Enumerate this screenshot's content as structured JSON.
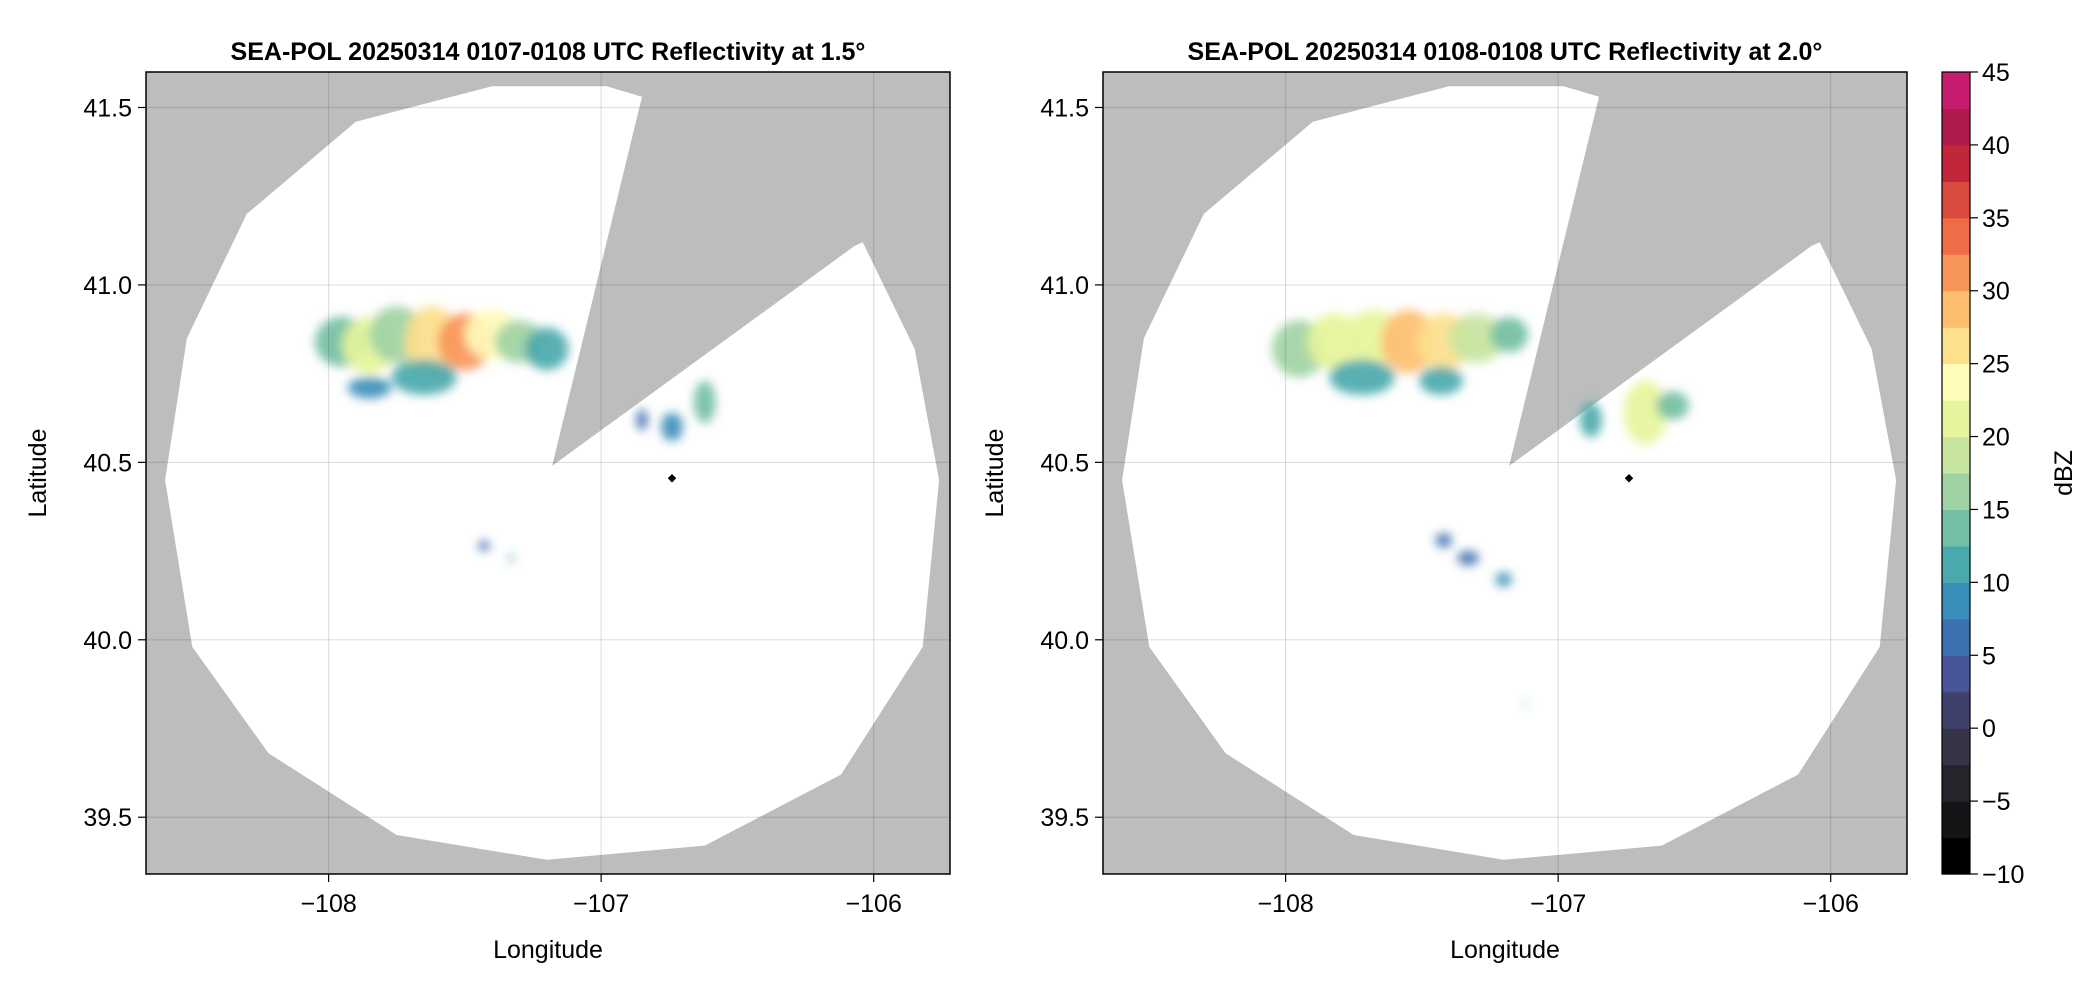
{
  "chart_data": {
    "type": "heatmap",
    "panels": [
      {
        "title": "SEA-POL 20250314 0107-0108 UTC Reflectivity at 1.5°",
        "xlabel": "Longitude",
        "ylabel": "Latitude",
        "xlim": [
          -108.67,
          -105.72
        ],
        "ylim": [
          39.34,
          41.6
        ],
        "xticks": [
          -108,
          -107,
          -106
        ],
        "xtick_labels": [
          "−108",
          "−107",
          "−106"
        ],
        "yticks": [
          39.5,
          40.0,
          40.5,
          41.0,
          41.5
        ],
        "ytick_labels": [
          "39.5",
          "40.0",
          "40.5",
          "41.0",
          "41.5"
        ],
        "grid": true,
        "background_color": "#bdbdbd",
        "coverage_color": "#ffffff",
        "coverage": {
          "outline": [
            [
              -106.98,
              41.56
            ],
            [
              -107.4,
              41.56
            ],
            [
              -107.9,
              41.46
            ],
            [
              -108.3,
              41.2
            ],
            [
              -108.52,
              40.85
            ],
            [
              -108.6,
              40.45
            ],
            [
              -108.5,
              39.98
            ],
            [
              -108.22,
              39.68
            ],
            [
              -107.75,
              39.45
            ],
            [
              -107.2,
              39.38
            ],
            [
              -106.62,
              39.42
            ],
            [
              -106.12,
              39.62
            ],
            [
              -105.82,
              39.98
            ],
            [
              -105.76,
              40.45
            ],
            [
              -105.85,
              40.82
            ],
            [
              -106.04,
              41.12
            ],
            [
              -106.07,
              41.11
            ],
            [
              -107.18,
              40.49
            ],
            [
              -106.85,
              41.53
            ]
          ]
        },
        "radar_site": {
          "lon": -106.74,
          "lat": 40.455
        },
        "echoes": [
          {
            "lon": -107.95,
            "lat": 40.84,
            "w": 0.1,
            "h": 0.07,
            "dbz": 14
          },
          {
            "lon": -107.85,
            "lat": 40.83,
            "w": 0.1,
            "h": 0.08,
            "dbz": 22
          },
          {
            "lon": -107.75,
            "lat": 40.86,
            "w": 0.1,
            "h": 0.08,
            "dbz": 17
          },
          {
            "lon": -107.62,
            "lat": 40.84,
            "w": 0.1,
            "h": 0.1,
            "dbz": 26
          },
          {
            "lon": -107.5,
            "lat": 40.84,
            "w": 0.1,
            "h": 0.08,
            "dbz": 31
          },
          {
            "lon": -107.4,
            "lat": 40.86,
            "w": 0.1,
            "h": 0.07,
            "dbz": 24
          },
          {
            "lon": -107.3,
            "lat": 40.84,
            "w": 0.09,
            "h": 0.06,
            "dbz": 15
          },
          {
            "lon": -107.2,
            "lat": 40.82,
            "w": 0.08,
            "h": 0.06,
            "dbz": 11
          },
          {
            "lon": -107.65,
            "lat": 40.74,
            "w": 0.12,
            "h": 0.05,
            "dbz": 12
          },
          {
            "lon": -107.85,
            "lat": 40.71,
            "w": 0.08,
            "h": 0.03,
            "dbz": 9
          },
          {
            "lon": -106.62,
            "lat": 40.67,
            "w": 0.04,
            "h": 0.06,
            "dbz": 14
          },
          {
            "lon": -106.74,
            "lat": 40.6,
            "w": 0.04,
            "h": 0.04,
            "dbz": 8
          },
          {
            "lon": -106.85,
            "lat": 40.62,
            "w": 0.02,
            "h": 0.03,
            "dbz": 6
          },
          {
            "lon": -107.43,
            "lat": 40.265,
            "w": 0.02,
            "h": 0.015,
            "dbz": 5
          },
          {
            "lon": -107.33,
            "lat": 40.23,
            "w": 0.01,
            "h": 0.01,
            "dbz": 8
          }
        ]
      },
      {
        "title": "SEA-POL 20250314 0108-0108 UTC Reflectivity at 2.0°",
        "xlabel": "Longitude",
        "ylabel": "Latitude",
        "xlim": [
          -108.67,
          -105.72
        ],
        "ylim": [
          39.34,
          41.6
        ],
        "xticks": [
          -108,
          -107,
          -106
        ],
        "xtick_labels": [
          "−108",
          "−107",
          "−106"
        ],
        "yticks": [
          39.5,
          40.0,
          40.5,
          41.0,
          41.5
        ],
        "ytick_labels": [
          "39.5",
          "40.0",
          "40.5",
          "41.0",
          "41.5"
        ],
        "grid": true,
        "background_color": "#bdbdbd",
        "coverage_color": "#ffffff",
        "coverage": {
          "outline": [
            [
              -106.98,
              41.56
            ],
            [
              -107.4,
              41.56
            ],
            [
              -107.9,
              41.46
            ],
            [
              -108.3,
              41.2
            ],
            [
              -108.52,
              40.85
            ],
            [
              -108.6,
              40.45
            ],
            [
              -108.5,
              39.98
            ],
            [
              -108.22,
              39.68
            ],
            [
              -107.75,
              39.45
            ],
            [
              -107.2,
              39.38
            ],
            [
              -106.62,
              39.42
            ],
            [
              -106.12,
              39.62
            ],
            [
              -105.82,
              39.98
            ],
            [
              -105.76,
              40.45
            ],
            [
              -105.85,
              40.82
            ],
            [
              -106.04,
              41.12
            ],
            [
              -106.07,
              41.11
            ],
            [
              -107.18,
              40.49
            ],
            [
              -106.85,
              41.53
            ]
          ]
        },
        "radar_site": {
          "lon": -106.74,
          "lat": 40.455
        },
        "echoes": [
          {
            "lon": -107.95,
            "lat": 40.82,
            "w": 0.1,
            "h": 0.08,
            "dbz": 15
          },
          {
            "lon": -107.82,
            "lat": 40.84,
            "w": 0.1,
            "h": 0.08,
            "dbz": 20
          },
          {
            "lon": -107.68,
            "lat": 40.85,
            "w": 0.1,
            "h": 0.08,
            "dbz": 22
          },
          {
            "lon": -107.55,
            "lat": 40.84,
            "w": 0.1,
            "h": 0.09,
            "dbz": 28
          },
          {
            "lon": -107.42,
            "lat": 40.84,
            "w": 0.1,
            "h": 0.08,
            "dbz": 26
          },
          {
            "lon": -107.3,
            "lat": 40.85,
            "w": 0.1,
            "h": 0.07,
            "dbz": 18
          },
          {
            "lon": -107.18,
            "lat": 40.86,
            "w": 0.07,
            "h": 0.05,
            "dbz": 13
          },
          {
            "lon": -107.72,
            "lat": 40.74,
            "w": 0.12,
            "h": 0.05,
            "dbz": 12
          },
          {
            "lon": -107.43,
            "lat": 40.73,
            "w": 0.08,
            "h": 0.04,
            "dbz": 10
          },
          {
            "lon": -106.68,
            "lat": 40.64,
            "w": 0.08,
            "h": 0.09,
            "dbz": 22
          },
          {
            "lon": -106.58,
            "lat": 40.66,
            "w": 0.06,
            "h": 0.04,
            "dbz": 13
          },
          {
            "lon": -106.88,
            "lat": 40.62,
            "w": 0.04,
            "h": 0.05,
            "dbz": 10
          },
          {
            "lon": -107.42,
            "lat": 40.28,
            "w": 0.03,
            "h": 0.02,
            "dbz": 5
          },
          {
            "lon": -107.33,
            "lat": 40.23,
            "w": 0.04,
            "h": 0.02,
            "dbz": 7
          },
          {
            "lon": -107.2,
            "lat": 40.17,
            "w": 0.03,
            "h": 0.02,
            "dbz": 8
          },
          {
            "lon": -107.12,
            "lat": 39.82,
            "w": 0.005,
            "h": 0.008,
            "dbz": 10
          }
        ]
      }
    ],
    "colorbar": {
      "label": "dBZ",
      "vmin": -10,
      "vmax": 45,
      "step": 2.5,
      "ticks": [
        -10,
        -5,
        0,
        5,
        10,
        15,
        20,
        25,
        30,
        35,
        40,
        45
      ],
      "tick_labels": [
        "−10",
        "−5",
        "0",
        "5",
        "10",
        "15",
        "20",
        "25",
        "30",
        "35",
        "40",
        "45"
      ],
      "colors": [
        "#000000",
        "#141417",
        "#25252c",
        "#353547",
        "#3f406b",
        "#47549a",
        "#3d70b1",
        "#3a8fba",
        "#4aa9ad",
        "#73bfa3",
        "#9fd2a3",
        "#c7e5a0",
        "#e6f59b",
        "#fffbb8",
        "#fde08c",
        "#fdbe70",
        "#f8965a",
        "#ef6c47",
        "#db4a3f",
        "#c2263a",
        "#b11a4e",
        "#c81c70",
        "#db4e9a",
        "#e47cb6",
        "#e3a3cc",
        "#c99bd0",
        "#a97ac0",
        "#855aa8",
        "#5f3288",
        "#3a0d5e"
      ]
    }
  }
}
